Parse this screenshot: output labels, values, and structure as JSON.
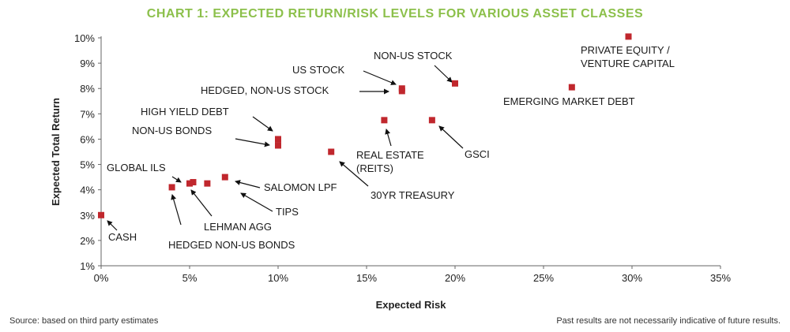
{
  "chart_data": {
    "type": "scatter",
    "title": "CHART 1: EXPECTED RETURN/RISK LEVELS FOR VARIOUS ASSET CLASSES",
    "xlabel": "Expected Risk",
    "ylabel": "Expected Total Return",
    "xlim": [
      0,
      35
    ],
    "ylim": [
      1,
      10
    ],
    "x_ticks": [
      "0%",
      "5%",
      "10%",
      "15%",
      "20%",
      "25%",
      "30%",
      "35%"
    ],
    "y_ticks": [
      "1%",
      "2%",
      "3%",
      "4%",
      "5%",
      "6%",
      "7%",
      "8%",
      "9%",
      "10%"
    ],
    "grid": false,
    "marker_color": "#c0272d",
    "points": [
      {
        "x": 0.0,
        "y": 3.0
      },
      {
        "x": 4.0,
        "y": 4.1
      },
      {
        "x": 5.0,
        "y": 4.25
      },
      {
        "x": 5.2,
        "y": 4.3
      },
      {
        "x": 6.0,
        "y": 4.25
      },
      {
        "x": 7.0,
        "y": 4.5
      },
      {
        "x": 10.0,
        "y": 6.0
      },
      {
        "x": 10.0,
        "y": 5.75
      },
      {
        "x": 13.0,
        "y": 5.5
      },
      {
        "x": 16.0,
        "y": 6.75
      },
      {
        "x": 17.0,
        "y": 8.0
      },
      {
        "x": 17.0,
        "y": 7.9
      },
      {
        "x": 18.7,
        "y": 6.75
      },
      {
        "x": 20.0,
        "y": 8.2
      },
      {
        "x": 26.6,
        "y": 8.05
      },
      {
        "x": 29.8,
        "y": 10.05
      }
    ],
    "annotations": [
      {
        "lines": [
          "CASH"
        ]
      },
      {
        "lines": [
          "GLOBAL ILS"
        ]
      },
      {
        "lines": [
          "HEDGED NON-US BONDS"
        ]
      },
      {
        "lines": [
          "LEHMAN AGG"
        ]
      },
      {
        "lines": [
          "TIPS"
        ]
      },
      {
        "lines": [
          "SALOMON LPF"
        ]
      },
      {
        "lines": [
          "HIGH YIELD DEBT"
        ]
      },
      {
        "lines": [
          "NON-US BONDS"
        ]
      },
      {
        "lines": [
          "30YR TREASURY"
        ]
      },
      {
        "lines": [
          "REAL ESTATE",
          "(REITS)"
        ]
      },
      {
        "lines": [
          "HEDGED, NON-US STOCK"
        ]
      },
      {
        "lines": [
          "US STOCK"
        ]
      },
      {
        "lines": [
          "NON-US STOCK"
        ]
      },
      {
        "lines": [
          "GSCI"
        ]
      },
      {
        "lines": [
          "EMERGING MARKET DEBT"
        ]
      },
      {
        "lines": [
          "PRIVATE EQUITY /",
          "VENTURE CAPITAL"
        ]
      }
    ]
  },
  "footer": {
    "source": "Source: based on third party estimates",
    "disclaimer": "Past results are not necessarily indicative of future results."
  }
}
